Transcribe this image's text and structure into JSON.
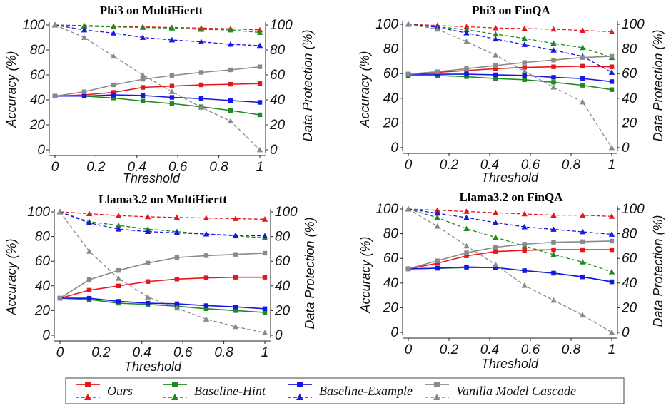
{
  "series_styles": [
    {
      "key": "ours",
      "color": "#e8161c"
    },
    {
      "key": "hint",
      "color": "#1f8a1f"
    },
    {
      "key": "example",
      "color": "#1616e6"
    },
    {
      "key": "cascade",
      "color": "#8a8a8a"
    }
  ],
  "legend": {
    "items": [
      {
        "label": "Ours",
        "color": "#e8161c"
      },
      {
        "label": "Baseline-Hint",
        "color": "#1f8a1f"
      },
      {
        "label": "Baseline-Example",
        "color": "#1616e6"
      },
      {
        "label": "Vanilla Model Cascade",
        "color": "#8a8a8a"
      }
    ],
    "placement": "bottom-center",
    "marker_solid": "square",
    "marker_dashed": "triangle"
  },
  "chart_data": [
    {
      "type": "line",
      "title": "Phi3 on MultiHiertt",
      "xlabel": "Threshold",
      "ylabel": "Accuracy (%)",
      "y2label": "Data Protection (%)",
      "xticks": [
        "0",
        "0.2",
        "0.4",
        "0.6",
        "0.8",
        "1"
      ],
      "yticks": [
        "0",
        "20",
        "40",
        "60",
        "80",
        "100"
      ],
      "y2ticks": [
        "0",
        "20",
        "40",
        "60",
        "80",
        "100"
      ],
      "xlim": [
        0,
        1
      ],
      "ylim": [
        0,
        100
      ],
      "y2lim": [
        0,
        100
      ],
      "x": [
        0,
        0.143,
        0.286,
        0.429,
        0.571,
        0.714,
        0.857,
        1
      ],
      "series": [
        {
          "key": "ours",
          "accuracy": [
            43,
            44,
            46,
            50,
            51,
            52,
            52.5,
            53
          ],
          "protection": [
            100,
            99.5,
            99,
            98.5,
            98,
            97.5,
            97,
            96
          ]
        },
        {
          "key": "hint",
          "accuracy": [
            43,
            43,
            41.5,
            39,
            37,
            34.5,
            31.5,
            28
          ],
          "protection": [
            100,
            99,
            98.5,
            98,
            97.5,
            96.5,
            96,
            94
          ]
        },
        {
          "key": "example",
          "accuracy": [
            43,
            43,
            44,
            43.5,
            42,
            41,
            39.5,
            38
          ],
          "protection": [
            100,
            96,
            93.5,
            90,
            88,
            86.5,
            84.5,
            83.5
          ]
        },
        {
          "key": "cascade",
          "accuracy": [
            43,
            46.5,
            52,
            56.5,
            59.5,
            62,
            64,
            66.5
          ],
          "protection": [
            100,
            90,
            75,
            60,
            46.5,
            34,
            23,
            0
          ]
        }
      ]
    },
    {
      "type": "line",
      "title": "Phi3 on FinQA",
      "xlabel": "Threshold",
      "ylabel": "Accuracy (%)",
      "y2label": "Data Protection (%)",
      "xticks": [
        "0",
        "0.2",
        "0.4",
        "0.6",
        "0.8",
        "1"
      ],
      "yticks": [
        "0",
        "20",
        "40",
        "60",
        "80",
        "100"
      ],
      "y2ticks": [
        "0",
        "20",
        "40",
        "60",
        "80",
        "100"
      ],
      "xlim": [
        0,
        1
      ],
      "ylim": [
        0,
        100
      ],
      "y2lim": [
        0,
        100
      ],
      "x": [
        0,
        0.143,
        0.286,
        0.429,
        0.571,
        0.714,
        0.857,
        1
      ],
      "series": [
        {
          "key": "ours",
          "accuracy": [
            59.5,
            61,
            62.5,
            64,
            65,
            65.5,
            66,
            65.5
          ],
          "protection": [
            100,
            99,
            98,
            97,
            96.5,
            96,
            95,
            94
          ]
        },
        {
          "key": "hint",
          "accuracy": [
            58.5,
            58.5,
            57.5,
            56,
            55,
            53,
            50.5,
            47
          ],
          "protection": [
            100,
            98,
            95.5,
            92,
            88.5,
            84.5,
            81,
            73
          ]
        },
        {
          "key": "example",
          "accuracy": [
            59.5,
            59.5,
            59.5,
            59,
            58.5,
            57,
            56,
            53.5
          ],
          "protection": [
            100,
            97.5,
            93,
            88,
            83.5,
            79,
            74,
            61
          ]
        },
        {
          "key": "cascade",
          "accuracy": [
            59.5,
            61.5,
            64,
            66.5,
            69,
            71,
            73,
            74
          ],
          "protection": [
            100,
            96,
            86,
            75,
            62,
            49,
            37,
            0
          ]
        }
      ]
    },
    {
      "type": "line",
      "title": "Llama3.2 on MultiHiertt",
      "xlabel": "Threshold",
      "ylabel": "Accuracy (%)",
      "y2label": "Data Protection (%)",
      "xticks": [
        "0",
        "0.2",
        "0.4",
        "0.6",
        "0.8",
        "1"
      ],
      "yticks": [
        "0",
        "20",
        "40",
        "60",
        "80",
        "100"
      ],
      "y2ticks": [
        "0",
        "20",
        "40",
        "60",
        "80",
        "100"
      ],
      "xlim": [
        0,
        1
      ],
      "ylim": [
        0,
        100
      ],
      "y2lim": [
        0,
        100
      ],
      "x": [
        0,
        0.143,
        0.286,
        0.429,
        0.571,
        0.714,
        0.857,
        1
      ],
      "series": [
        {
          "key": "ours",
          "accuracy": [
            30,
            36.5,
            40,
            43.5,
            45.5,
            46.5,
            47,
            47
          ],
          "protection": [
            100,
            98.5,
            97,
            96,
            95.5,
            95,
            94.5,
            94
          ]
        },
        {
          "key": "hint",
          "accuracy": [
            30,
            29,
            26,
            25,
            23.5,
            21.5,
            20,
            18.5
          ],
          "protection": [
            100,
            92,
            89,
            86,
            84,
            82,
            80.5,
            79
          ]
        },
        {
          "key": "example",
          "accuracy": [
            30,
            30,
            27.5,
            26,
            25.5,
            24,
            23,
            21.5
          ],
          "protection": [
            100,
            91,
            86,
            84,
            83,
            82,
            81,
            80.5
          ]
        },
        {
          "key": "cascade",
          "accuracy": [
            30,
            45,
            52.5,
            58.5,
            63,
            64.5,
            65.5,
            66.5
          ],
          "protection": [
            100,
            68,
            46,
            31,
            22,
            13,
            7,
            2
          ]
        }
      ]
    },
    {
      "type": "line",
      "title": "Llama3.2 on FinQA",
      "xlabel": "Threshold",
      "ylabel": "Accuracy (%)",
      "y2label": "Data Protection (%)",
      "xticks": [
        "0",
        "0.2",
        "0.4",
        "0.6",
        "0.8",
        "1"
      ],
      "yticks": [
        "0",
        "20",
        "40",
        "60",
        "80",
        "100"
      ],
      "y2ticks": [
        "0",
        "20",
        "40",
        "60",
        "80",
        "100"
      ],
      "xlim": [
        0,
        1
      ],
      "ylim": [
        0,
        100
      ],
      "y2lim": [
        0,
        100
      ],
      "x": [
        0,
        0.143,
        0.286,
        0.429,
        0.571,
        0.714,
        0.857,
        1
      ],
      "series": [
        {
          "key": "ours",
          "accuracy": [
            51.5,
            56,
            62,
            65.5,
            66.5,
            67,
            67,
            67
          ],
          "protection": [
            100,
            99,
            98,
            97,
            96,
            95,
            95,
            94
          ]
        },
        {
          "key": "hint",
          "accuracy": [
            51.5,
            52,
            52.5,
            52.5,
            50,
            48,
            45,
            41
          ],
          "protection": [
            100,
            93,
            84,
            77,
            70,
            63,
            57,
            49
          ]
        },
        {
          "key": "example",
          "accuracy": [
            51.5,
            52,
            53,
            52.5,
            50,
            48,
            45,
            41
          ],
          "protection": [
            100,
            96.5,
            93,
            89,
            85.5,
            83.5,
            81.5,
            79.5
          ]
        },
        {
          "key": "cascade",
          "accuracy": [
            51.5,
            58,
            64.5,
            69,
            71.5,
            73,
            73.5,
            74
          ],
          "protection": [
            100,
            86,
            70,
            55,
            38,
            26,
            14,
            0
          ]
        }
      ]
    }
  ]
}
